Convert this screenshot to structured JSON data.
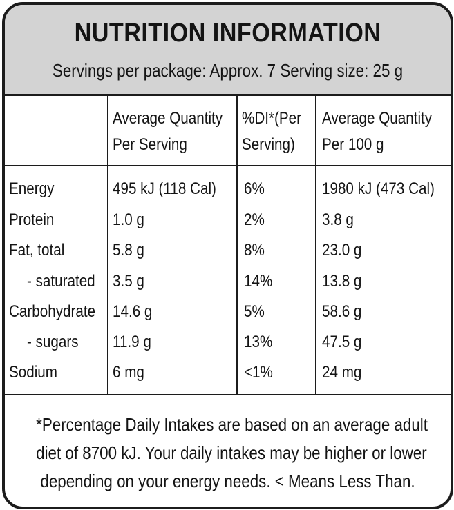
{
  "title": "NUTRITION INFORMATION",
  "subtitle": "Servings per package: Approx. 7  Serving size: 25 g",
  "columns": [
    {
      "line1": "",
      "line2": ""
    },
    {
      "line1": "Average Quantity",
      "line2": "Per Serving"
    },
    {
      "line1": "%DI*(Per",
      "line2": "Serving)"
    },
    {
      "line1": "Average Quantity",
      "line2": "Per 100 g"
    }
  ],
  "rows": [
    {
      "name": "Energy",
      "per_serving": "495 kJ (118 Cal)",
      "di": "6%",
      "per_100g": "1980 kJ (473 Cal)"
    },
    {
      "name": "Protein",
      "per_serving": "1.0 g",
      "di": "2%",
      "per_100g": "3.8 g"
    },
    {
      "name": "Fat, total",
      "per_serving": "5.8 g",
      "di": "8%",
      "per_100g": "23.0 g"
    },
    {
      "name": "- saturated",
      "per_serving": "3.5 g",
      "di": "14%",
      "per_100g": "13.8 g"
    },
    {
      "name": "Carbohydrate",
      "per_serving": "14.6 g",
      "di": "5%",
      "per_100g": "58.6 g"
    },
    {
      "name": "- sugars",
      "per_serving": "11.9 g",
      "di": "13%",
      "per_100g": "47.5 g"
    },
    {
      "name": "Sodium",
      "per_serving": "6 mg",
      "di": "<1%",
      "per_100g": "24 mg"
    }
  ],
  "footnote": [
    "*Percentage Daily Intakes are based on an average adult",
    "diet of 8700 kJ. Your daily intakes may be higher or lower",
    "depending on your energy needs. < Means Less Than."
  ],
  "colors": {
    "header_bg": "#d3d3d3",
    "border": "#1c1c1c",
    "text": "#141414"
  }
}
